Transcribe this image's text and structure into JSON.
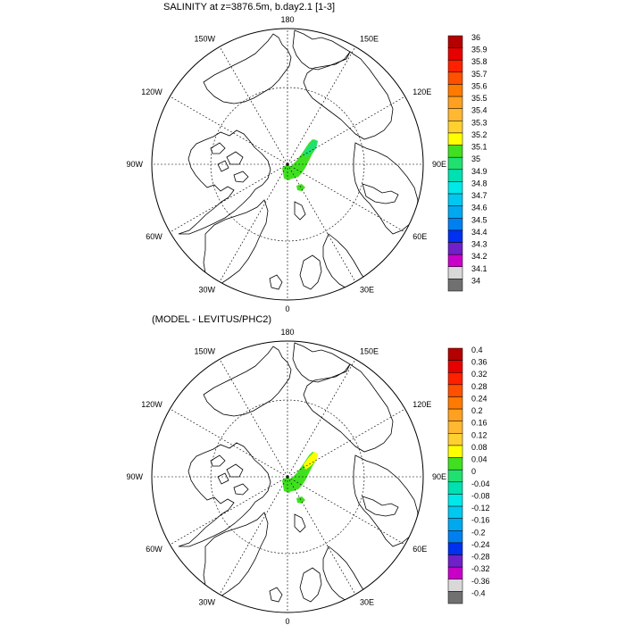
{
  "panels": [
    {
      "title": "SALINITY at z=3876.5m, b.day2.1 [1-3]",
      "longitude_labels": [
        "180",
        "150E",
        "120E",
        "90E",
        "60E",
        "30E",
        "0",
        "30W",
        "60W",
        "90W",
        "120W",
        "150W"
      ],
      "colorbar": {
        "labels": [
          "36",
          "35.9",
          "35.8",
          "35.7",
          "35.6",
          "35.5",
          "35.4",
          "35.3",
          "35.2",
          "35.1",
          "35",
          "34.9",
          "34.8",
          "34.7",
          "34.6",
          "34.5",
          "34.4",
          "34.3",
          "34.2",
          "34.1",
          "34"
        ],
        "colors": [
          "#b40000",
          "#e60000",
          "#ff2000",
          "#ff5000",
          "#ff7a00",
          "#ffa020",
          "#ffb830",
          "#ffd030",
          "#ffff00",
          "#40e020",
          "#20e070",
          "#00e0b0",
          "#00e8e8",
          "#00c8f0",
          "#00a8f0",
          "#0080f0",
          "#0030f0",
          "#7020c8",
          "#c800c8",
          "#d8d8d8",
          "#707070"
        ]
      },
      "field_colors": [
        "#40e020",
        "#20e070"
      ]
    },
    {
      "title": "(MODEL - LEVITUS/PHC2)",
      "longitude_labels": [
        "180",
        "150E",
        "120E",
        "90E",
        "60E",
        "30E",
        "0",
        "30W",
        "60W",
        "90W",
        "120W",
        "150W"
      ],
      "colorbar": {
        "labels": [
          "0.4",
          "0.36",
          "0.32",
          "0.28",
          "0.24",
          "0.2",
          "0.16",
          "0.12",
          "0.08",
          "0.04",
          "0",
          "-0.04",
          "-0.08",
          "-0.12",
          "-0.16",
          "-0.2",
          "-0.24",
          "-0.28",
          "-0.32",
          "-0.36",
          "-0.4"
        ],
        "colors": [
          "#b40000",
          "#e60000",
          "#ff2000",
          "#ff5000",
          "#ff7a00",
          "#ffa020",
          "#ffb830",
          "#ffd030",
          "#ffff00",
          "#40e020",
          "#20e070",
          "#00e0b0",
          "#00e8e8",
          "#00c8f0",
          "#00a8f0",
          "#0080f0",
          "#0030f0",
          "#7020c8",
          "#c800c8",
          "#d8d8d8",
          "#707070"
        ]
      },
      "field_colors": [
        "#40e020",
        "#ffff00"
      ]
    }
  ]
}
